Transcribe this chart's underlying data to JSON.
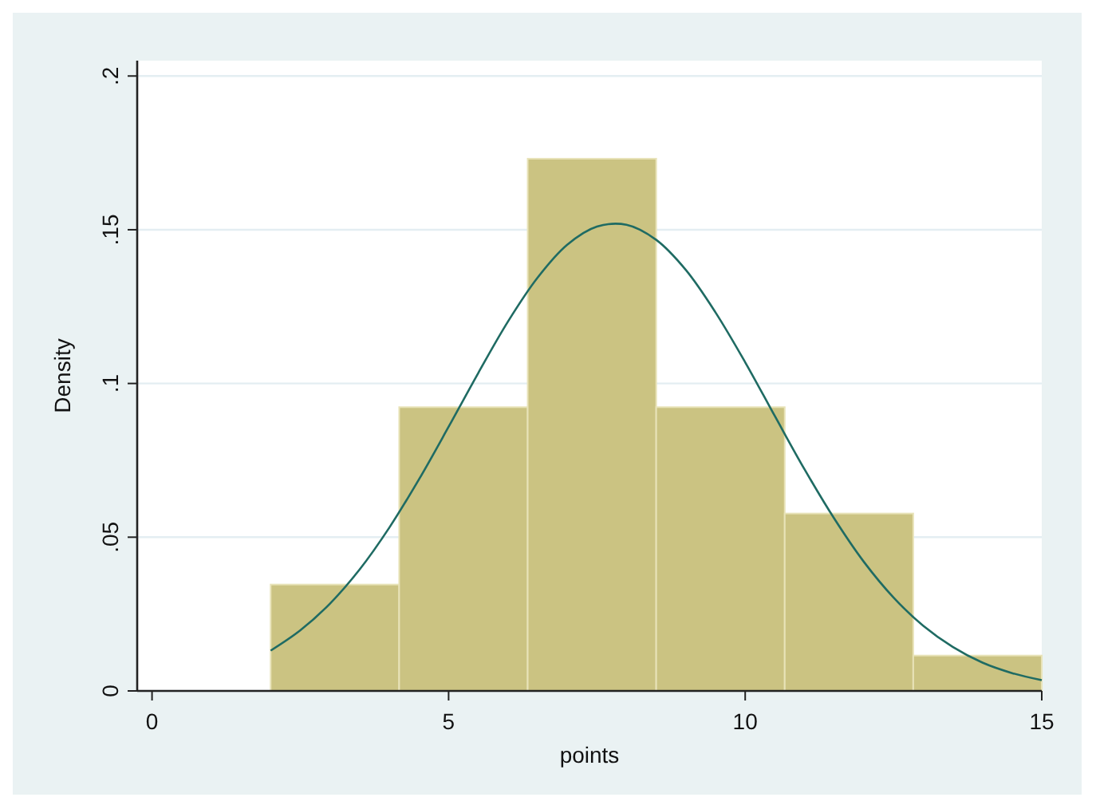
{
  "chart_data": {
    "type": "histogram",
    "xlabel": "points",
    "ylabel": "Density",
    "bins": [
      2,
      4.1667,
      6.3333,
      8.5,
      10.6667,
      12.8333,
      15
    ],
    "values": [
      0.0346,
      0.0923,
      0.1731,
      0.0923,
      0.0577,
      0.0115
    ],
    "color": "#cbc382",
    "series": [
      {
        "type": "line",
        "color": "#1f6b63",
        "x": [
          2,
          2.5,
          3,
          3.5,
          4,
          4.5,
          5,
          5.5,
          6,
          6.5,
          7,
          7.5,
          8,
          8.5,
          9,
          9.5,
          10,
          10.5,
          11,
          11.5,
          12,
          12.5,
          13,
          13.5,
          14,
          14.5,
          15
        ],
        "values": [
          0.0131,
          0.0197,
          0.0284,
          0.0395,
          0.0531,
          0.0688,
          0.0859,
          0.1034,
          0.1201,
          0.1344,
          0.1451,
          0.151,
          0.1516,
          0.1467,
          0.1369,
          0.1231,
          0.1069,
          0.0894,
          0.0721,
          0.0561,
          0.042,
          0.0304,
          0.0212,
          0.0143,
          0.0092,
          0.0058,
          0.0035
        ]
      }
    ],
    "xlim": [
      -0.25,
      15
    ],
    "xticks": [
      0,
      5,
      10,
      15
    ],
    "ylim": [
      0,
      0.205
    ],
    "yticks": [
      {
        "value": 0,
        "label": "0"
      },
      {
        "value": 0.05,
        "label": ".05"
      },
      {
        "value": 0.1,
        "label": ".1"
      },
      {
        "value": 0.15,
        "label": ".15"
      },
      {
        "value": 0.2,
        "label": ".2"
      }
    ],
    "grid": "y",
    "marker": "none",
    "line_style": "solid"
  }
}
